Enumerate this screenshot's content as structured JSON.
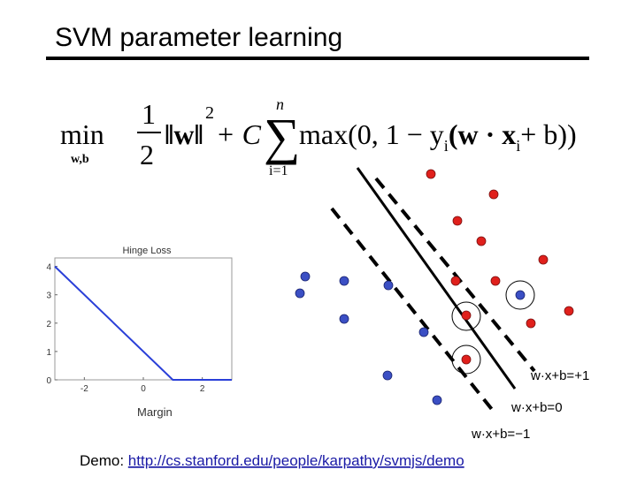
{
  "header": {
    "title": "SVM parameter learning"
  },
  "formula": {
    "min": "min",
    "min_sub": "w,b",
    "frac_num": "1",
    "frac_den": "2",
    "norm": "‖w‖",
    "norm_exp": "2",
    "plus_c": "+ C",
    "sum": "∑",
    "sum_top": "n",
    "sum_bottom": "i=1",
    "max_start": "max(0, 1 − y",
    "y_sub": "i",
    "dot": "(w · x",
    "x_sub": "i",
    "end": "+ b))"
  },
  "hinge_plot": {
    "title": "Hinge Loss",
    "x": [
      -3,
      1,
      3
    ],
    "values": [
      4,
      0,
      0
    ],
    "color": "#2a3fd8",
    "xlim": [
      -3,
      3
    ],
    "ylim": [
      0,
      4.3
    ],
    "xticks": [
      -2,
      0,
      2
    ],
    "yticks": [
      0,
      1,
      2,
      3,
      4
    ]
  },
  "labels": {
    "margin": "Margin",
    "plus_one": "w·x+b=+1",
    "zero": "w·x+b=0",
    "minus_one": "w·x+b=−1"
  },
  "footer": {
    "demo": "Demo: ",
    "link": "http://cs.stanford.edu/people/karpathy/svmjs/demo"
  }
}
